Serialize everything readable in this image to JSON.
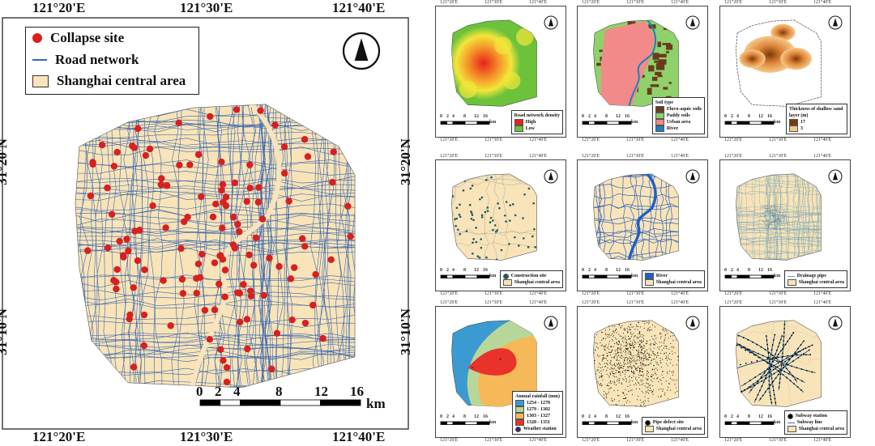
{
  "main": {
    "lon_labels": [
      "121°20'E",
      "121°30'E",
      "121°40'E"
    ],
    "lat_labels": [
      "31°20'N",
      "31°10'N"
    ],
    "legend": [
      {
        "label": "Collapse site",
        "color": "#d8201f"
      },
      {
        "label": "Road network",
        "color": "#3a66b0"
      },
      {
        "label": "Shanghai central area",
        "color": "#f9e4bc"
      }
    ],
    "scale_labels": [
      "0",
      "2",
      "4",
      "8",
      "12",
      "16"
    ],
    "scale_unit": "km",
    "north_icon": "north-arrow-icon"
  },
  "panel_common": {
    "lon_labels": [
      "121°20'E",
      "121°30'E",
      "121°40'E"
    ],
    "lat_labels": [
      "31°20'N",
      "31°10'N"
    ],
    "scale_labels": [
      "0",
      "2",
      "4",
      "8",
      "12",
      "16"
    ],
    "scale_unit": "km"
  },
  "panels": [
    {
      "type": "density",
      "legend_title": "Road network density",
      "items": [
        {
          "label": "High",
          "color": "#e8221b"
        },
        {
          "label": "Low",
          "color": "#6cc23a"
        }
      ]
    },
    {
      "type": "soil",
      "legend_title": "Soil type",
      "items": [
        {
          "label": "Fluvo-aquic soils",
          "color": "#6b3a1f"
        },
        {
          "label": "Paddy soils",
          "color": "#8fd16a"
        },
        {
          "label": "Urban area",
          "color": "#f28a8a"
        },
        {
          "label": "River",
          "color": "#1f7fc0"
        }
      ]
    },
    {
      "type": "sand",
      "legend_title": "Thickness of shallow sand layer (m)",
      "items": [
        {
          "label": "17",
          "color": "#7a3a0a"
        },
        {
          "label": "3",
          "color": "#f5c98a"
        }
      ]
    },
    {
      "type": "construction",
      "legend_title": "",
      "items": [
        {
          "label": "Construction site",
          "color": "#1a5a6a"
        },
        {
          "label": "Shanghai central area",
          "color": "#f8e4b8"
        }
      ]
    },
    {
      "type": "river",
      "legend_title": "",
      "items": [
        {
          "label": "River",
          "color": "#1f5fc9"
        },
        {
          "label": "Shanghai central area",
          "color": "#f8e4b8"
        }
      ]
    },
    {
      "type": "drainage",
      "legend_title": "",
      "items": [
        {
          "label": "Drainage pipe",
          "color": "#6f9fb5"
        },
        {
          "label": "Shanghai central area",
          "color": "#f8e4b8"
        }
      ]
    },
    {
      "type": "rainfall",
      "legend_title": "Annual rainfall (mm)",
      "items": [
        {
          "label": "1254 - 1278",
          "color": "#3b9bd1"
        },
        {
          "label": "1279 - 1302",
          "color": "#b7d79a"
        },
        {
          "label": "1303 - 1327",
          "color": "#f5b95a"
        },
        {
          "label": "1328 - 1351",
          "color": "#e8322a"
        },
        {
          "label": "Weather station",
          "color": "#2a2a6a"
        }
      ]
    },
    {
      "type": "pipe",
      "legend_title": "",
      "items": [
        {
          "label": "Pipe defect site",
          "color": "#000000"
        },
        {
          "label": "Shanghai central area",
          "color": "#f8e4b8"
        }
      ]
    },
    {
      "type": "subway",
      "legend_title": "",
      "items": [
        {
          "label": "Subway station",
          "color": "#000000"
        },
        {
          "label": "Subway line",
          "color": "#3a7ab0"
        },
        {
          "label": "Shanghai central area",
          "color": "#f8e4b8"
        }
      ]
    }
  ]
}
